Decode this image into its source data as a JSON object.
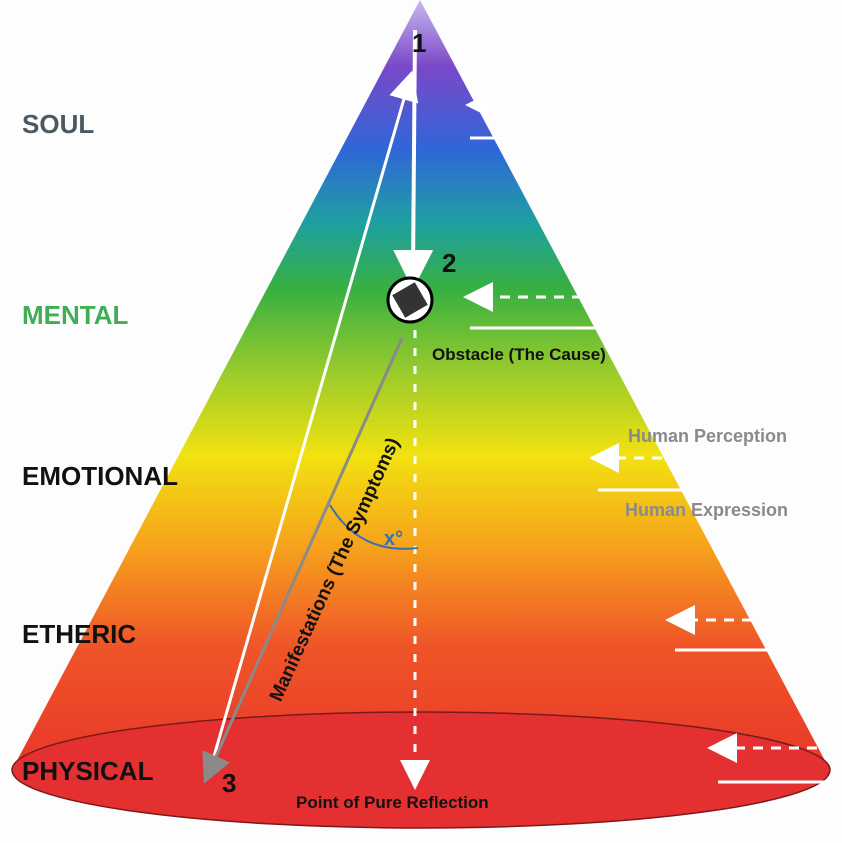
{
  "levels": [
    "SOUL",
    "MENTAL",
    "EMOTIONAL",
    "ETHERIC",
    "PHYSICAL"
  ],
  "points": [
    "1",
    "2",
    "3"
  ],
  "obstacle": "Obstacle (The Cause)",
  "manifestations": "Manifestations (The Symptoms)",
  "angle": "x°",
  "human_perception": "Human Perception",
  "human_expression": "Human Expression",
  "reflection": "Point of Pure Reflection"
}
